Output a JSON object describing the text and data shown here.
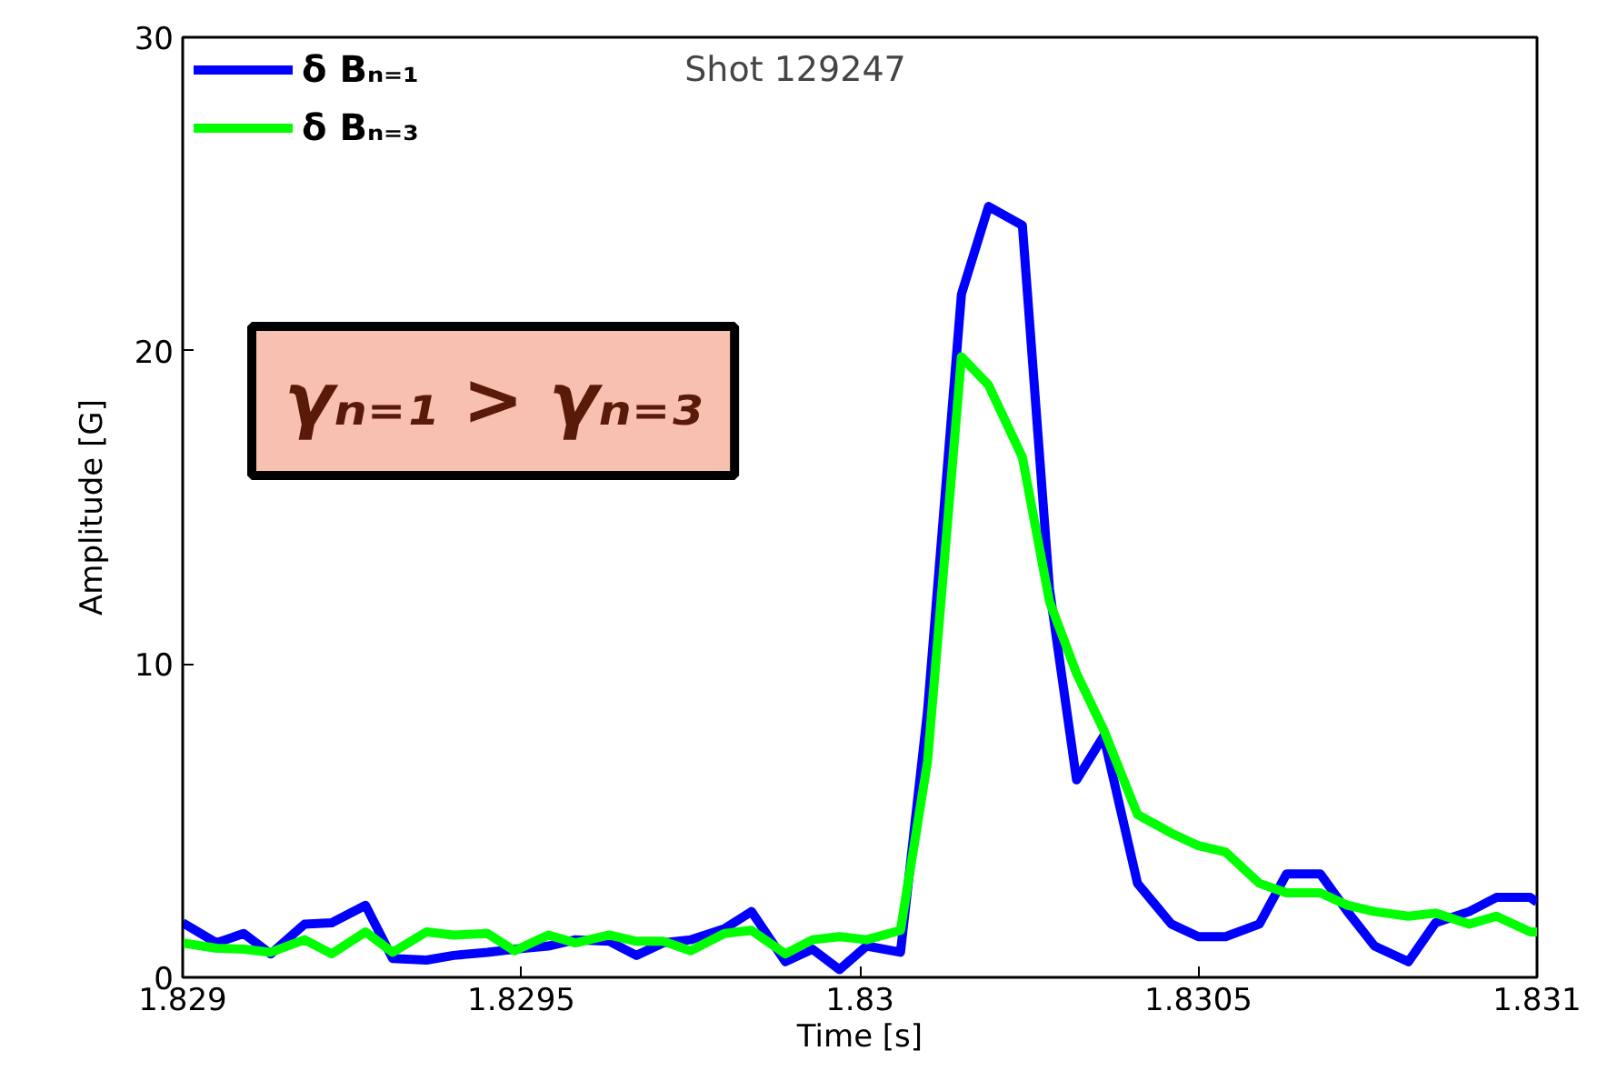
{
  "chart_data": {
    "type": "line",
    "title": "Shot 129247",
    "xlabel": "Time [s]",
    "ylabel": "Amplitude [G]",
    "x": [
      1.829,
      1.82905,
      1.82909,
      1.82913,
      1.82918,
      1.82922,
      1.82927,
      1.82931,
      1.82936,
      1.8294,
      1.82945,
      1.82949,
      1.82954,
      1.82958,
      1.82963,
      1.82967,
      1.82971,
      1.82975,
      1.8298,
      1.82984,
      1.82989,
      1.82993,
      1.82997,
      1.83001,
      1.83006,
      1.8301,
      1.83015,
      1.83019,
      1.83024,
      1.83028,
      1.83032,
      1.83036,
      1.83041,
      1.83046,
      1.8305,
      1.83054,
      1.83059,
      1.83063,
      1.83068,
      1.83072,
      1.83076,
      1.83081,
      1.83085,
      1.8309,
      1.83094,
      1.83099,
      1.831
    ],
    "series": [
      {
        "name": "δ Bₙ₌₁",
        "color": "#0000ff",
        "values": [
          1.74,
          1.1,
          1.4,
          0.75,
          1.7,
          1.74,
          2.3,
          0.6,
          0.55,
          0.7,
          0.8,
          0.9,
          1.0,
          1.2,
          1.15,
          0.7,
          1.1,
          1.2,
          1.55,
          2.1,
          0.5,
          0.9,
          0.25,
          1.0,
          0.8,
          8.5,
          21.8,
          24.6,
          24.0,
          12.4,
          6.3,
          7.7,
          3.0,
          1.7,
          1.3,
          1.3,
          1.7,
          3.3,
          3.3,
          2.1,
          1.0,
          0.5,
          1.74,
          2.1,
          2.55,
          2.55,
          2.4
        ]
      },
      {
        "name": "δ Bₙ₌₃",
        "color": "#00ff00",
        "values": [
          1.1,
          0.93,
          0.9,
          0.8,
          1.2,
          0.75,
          1.45,
          0.8,
          1.45,
          1.35,
          1.4,
          0.85,
          1.35,
          1.1,
          1.35,
          1.15,
          1.15,
          0.85,
          1.4,
          1.5,
          0.75,
          1.2,
          1.3,
          1.2,
          1.5,
          6.9,
          19.8,
          18.9,
          16.6,
          12.0,
          9.7,
          7.9,
          5.2,
          4.6,
          4.2,
          4.0,
          3.0,
          2.7,
          2.7,
          2.3,
          2.1,
          1.95,
          2.05,
          1.7,
          1.95,
          1.45,
          1.45
        ]
      }
    ],
    "xlim": [
      1.829,
      1.831
    ],
    "xticks": [
      1.829,
      1.8295,
      1.83,
      1.8305,
      1.831
    ],
    "ylim": [
      0,
      30
    ],
    "yticks": [
      0,
      10,
      20,
      30
    ],
    "grid": false,
    "legend": "top left",
    "marker": "none",
    "line_style": "solid",
    "annotations": [
      "γₙ₌₁ > γₙ₌₃"
    ]
  }
}
